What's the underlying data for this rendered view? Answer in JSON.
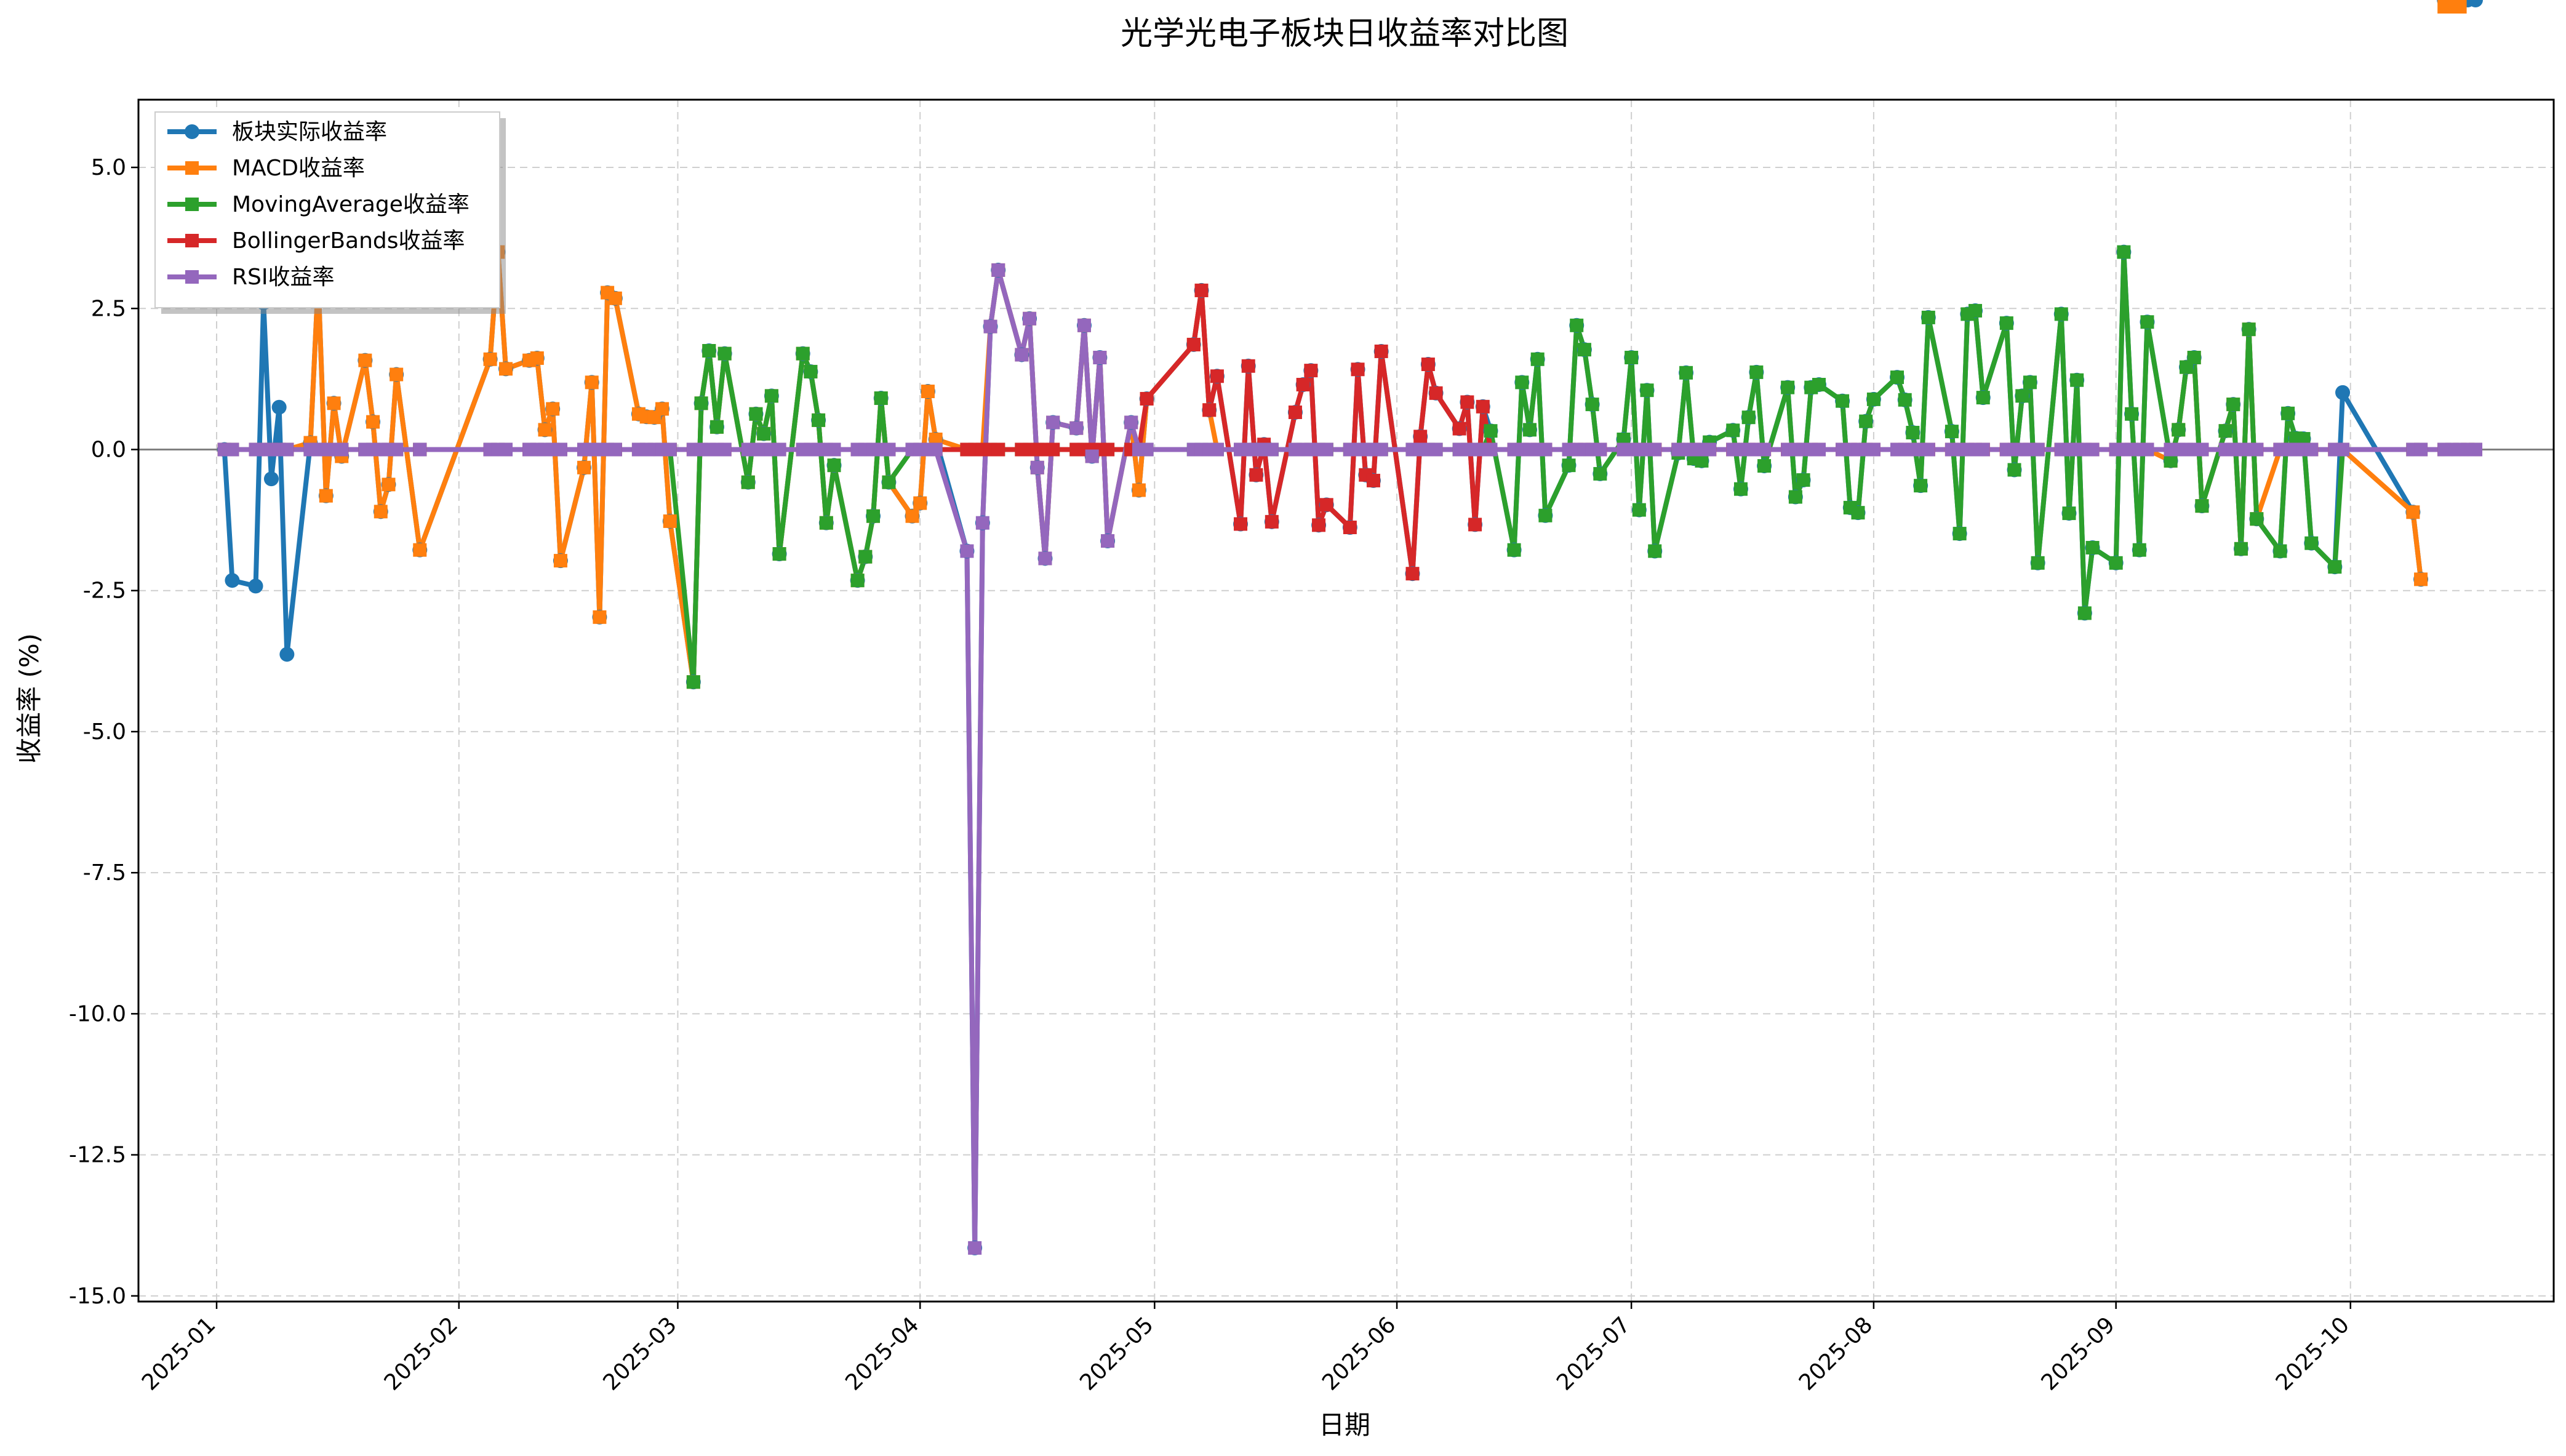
{
  "chart_data": {
    "type": "line",
    "title": "光学光电子板块日收益率对比图",
    "xlabel": "日期",
    "ylabel": "收益率 (%)",
    "xlim": [
      "2024-12-22",
      "2025-10-27"
    ],
    "ylim": [
      -15.1,
      6.2
    ],
    "grid": true,
    "legend_position": "top-left",
    "zero_line": 0,
    "x_ticks": [
      "2025-01",
      "2025-02",
      "2025-03",
      "2025-04",
      "2025-05",
      "2025-06",
      "2025-07",
      "2025-08",
      "2025-09",
      "2025-10"
    ],
    "y_ticks": [
      "5.0",
      "2.5",
      "0.0",
      "-2.5",
      "-5.0",
      "-7.5",
      "-10.0",
      "-12.5",
      "-15.0"
    ],
    "y_tick_values": [
      5,
      2.5,
      0,
      -2.5,
      -5,
      -7.5,
      -10,
      -12.5,
      -15
    ],
    "dates": [
      "2025-01-02",
      "2025-01-03",
      "2025-01-06",
      "2025-01-07",
      "2025-01-08",
      "2025-01-09",
      "2025-01-10",
      "2025-01-13",
      "2025-01-14",
      "2025-01-15",
      "2025-01-16",
      "2025-01-17",
      "2025-01-20",
      "2025-01-21",
      "2025-01-22",
      "2025-01-23",
      "2025-01-24",
      "2025-01-27",
      "2025-02-05",
      "2025-02-06",
      "2025-02-07",
      "2025-02-10",
      "2025-02-11",
      "2025-02-12",
      "2025-02-13",
      "2025-02-14",
      "2025-02-17",
      "2025-02-18",
      "2025-02-19",
      "2025-02-20",
      "2025-02-21",
      "2025-02-24",
      "2025-02-25",
      "2025-02-26",
      "2025-02-27",
      "2025-02-28",
      "2025-03-03",
      "2025-03-04",
      "2025-03-05",
      "2025-03-06",
      "2025-03-07",
      "2025-03-10",
      "2025-03-11",
      "2025-03-12",
      "2025-03-13",
      "2025-03-14",
      "2025-03-17",
      "2025-03-18",
      "2025-03-19",
      "2025-03-20",
      "2025-03-21",
      "2025-03-24",
      "2025-03-25",
      "2025-03-26",
      "2025-03-27",
      "2025-03-28",
      "2025-03-31",
      "2025-04-01",
      "2025-04-02",
      "2025-04-03",
      "2025-04-07",
      "2025-04-08",
      "2025-04-09",
      "2025-04-10",
      "2025-04-11",
      "2025-04-14",
      "2025-04-15",
      "2025-04-16",
      "2025-04-17",
      "2025-04-18",
      "2025-04-21",
      "2025-04-22",
      "2025-04-23",
      "2025-04-24",
      "2025-04-25",
      "2025-04-28",
      "2025-04-29",
      "2025-04-30",
      "2025-05-06",
      "2025-05-07",
      "2025-05-08",
      "2025-05-09",
      "2025-05-12",
      "2025-05-13",
      "2025-05-14",
      "2025-05-15",
      "2025-05-16",
      "2025-05-19",
      "2025-05-20",
      "2025-05-21",
      "2025-05-22",
      "2025-05-23",
      "2025-05-26",
      "2025-05-27",
      "2025-05-28",
      "2025-05-29",
      "2025-05-30",
      "2025-06-03",
      "2025-06-04",
      "2025-06-05",
      "2025-06-06",
      "2025-06-09",
      "2025-06-10",
      "2025-06-11",
      "2025-06-12",
      "2025-06-13",
      "2025-06-16",
      "2025-06-17",
      "2025-06-18",
      "2025-06-19",
      "2025-06-20",
      "2025-06-23",
      "2025-06-24",
      "2025-06-25",
      "2025-06-26",
      "2025-06-27",
      "2025-06-30",
      "2025-07-01",
      "2025-07-02",
      "2025-07-03",
      "2025-07-04",
      "2025-07-07",
      "2025-07-08",
      "2025-07-09",
      "2025-07-10",
      "2025-07-11",
      "2025-07-14",
      "2025-07-15",
      "2025-07-16",
      "2025-07-17",
      "2025-07-18",
      "2025-07-21",
      "2025-07-22",
      "2025-07-23",
      "2025-07-24",
      "2025-07-25",
      "2025-07-28",
      "2025-07-29",
      "2025-07-30",
      "2025-07-31",
      "2025-08-01",
      "2025-08-04",
      "2025-08-05",
      "2025-08-06",
      "2025-08-07",
      "2025-08-08",
      "2025-08-11",
      "2025-08-12",
      "2025-08-13",
      "2025-08-14",
      "2025-08-15",
      "2025-08-18",
      "2025-08-19",
      "2025-08-20",
      "2025-08-21",
      "2025-08-22",
      "2025-08-25",
      "2025-08-26",
      "2025-08-27",
      "2025-08-28",
      "2025-08-29",
      "2025-09-01",
      "2025-09-02",
      "2025-09-03",
      "2025-09-04",
      "2025-09-05",
      "2025-09-08",
      "2025-09-09",
      "2025-09-10",
      "2025-09-11",
      "2025-09-12",
      "2025-09-15",
      "2025-09-16",
      "2025-09-17",
      "2025-09-18",
      "2025-09-19",
      "2025-09-22",
      "2025-09-23",
      "2025-09-24",
      "2025-09-25",
      "2025-09-26",
      "2025-09-29",
      "2025-09-30",
      "2025-10-09",
      "2025-10-10",
      "2025-10-13",
      "2025-10-14",
      "2025-10-15",
      "2025-10-16",
      "2025-10-17"
    ],
    "actual": [
      0,
      -2.32,
      -2.42,
      2.6,
      -0.52,
      0.75,
      -3.63,
      0.12,
      3.0,
      -0.82,
      0.82,
      -0.12,
      1.58,
      0.49,
      -1.1,
      -0.62,
      1.33,
      -1.78,
      1.6,
      3.5,
      1.43,
      1.58,
      1.62,
      0.35,
      0.72,
      -1.97,
      -0.32,
      1.19,
      -2.97,
      2.78,
      2.68,
      0.63,
      0.58,
      0.57,
      0.72,
      -1.27,
      -4.12,
      0.82,
      1.75,
      0.4,
      1.7,
      -0.58,
      0.63,
      0.28,
      0.95,
      -1.85,
      1.7,
      1.38,
      0.52,
      -1.3,
      -0.28,
      -2.32,
      -1.9,
      -1.18,
      0.91,
      -0.58,
      -1.18,
      -0.95,
      1.03,
      0.18,
      -1.8,
      -14.15,
      -1.3,
      2.18,
      3.18,
      1.68,
      2.32,
      -0.32,
      -1.93,
      0.48,
      0.38,
      2.2,
      -0.12,
      1.63,
      -1.62,
      0.48,
      -0.72,
      0.9,
      1.86,
      2.82,
      0.7,
      1.3,
      -1.32,
      1.48,
      -0.45,
      0.09,
      -1.28,
      0.66,
      1.15,
      1.4,
      -1.34,
      -0.98,
      -1.38,
      1.42,
      -0.45,
      -0.55,
      1.74,
      -2.2,
      0.23,
      1.51,
      1.0,
      0.37,
      0.84,
      -1.33,
      0.76,
      0.33,
      -1.78,
      1.19,
      0.35,
      1.6,
      -1.17,
      -0.28,
      2.2,
      1.77,
      0.8,
      -0.43,
      0.18,
      1.63,
      -1.07,
      1.05,
      -1.8,
      -0.06,
      1.36,
      -0.16,
      -0.2,
      0.13,
      0.34,
      -0.7,
      0.57,
      1.37,
      -0.29,
      1.1,
      -0.84,
      -0.54,
      1.1,
      1.15,
      0.86,
      -1.03,
      -1.12,
      0.5,
      0.89,
      1.28,
      0.88,
      0.3,
      -0.64,
      2.34,
      0.32,
      -1.49,
      2.4,
      2.46,
      0.92,
      2.24,
      -0.36,
      0.95,
      1.19,
      -2.01,
      2.4,
      -1.13,
      1.23,
      -2.9,
      -1.74,
      -2.01,
      3.5,
      0.63,
      -1.78,
      2.26,
      -0.2,
      0.35,
      1.46,
      1.63,
      -1.0,
      0.33,
      0.8,
      -1.76,
      2.13,
      -1.23,
      -1.8,
      0.64,
      0.2,
      0.19,
      -1.66,
      -2.08,
      1.01,
      -1.11,
      -2.3
    ],
    "series": [
      {
        "name": "板块实际收益率",
        "color": "#1f77b4",
        "marker": "circle"
      },
      {
        "name": "MACD收益率",
        "color": "#ff7f0e",
        "marker": "square"
      },
      {
        "name": "MovingAverage收益率",
        "color": "#2ca02c",
        "marker": "square"
      },
      {
        "name": "BollingerBands收益率",
        "color": "#d62728",
        "marker": "square"
      },
      {
        "name": "RSI收益率",
        "color": "#9467bd",
        "marker": "square"
      }
    ],
    "strategy_segments": {
      "MACD收益率": [
        [
          7,
          59
        ],
        [
          63,
          80
        ],
        [
          166,
          175
        ],
        [
          183,
          187
        ]
      ],
      "MovingAverage收益率": [
        [
          36,
          55
        ],
        [
          105,
          181
        ]
      ],
      "BollingerBands收益率": [
        [
          77,
          104
        ]
      ],
      "RSI收益率": [
        [
          60,
          75
        ]
      ]
    }
  }
}
